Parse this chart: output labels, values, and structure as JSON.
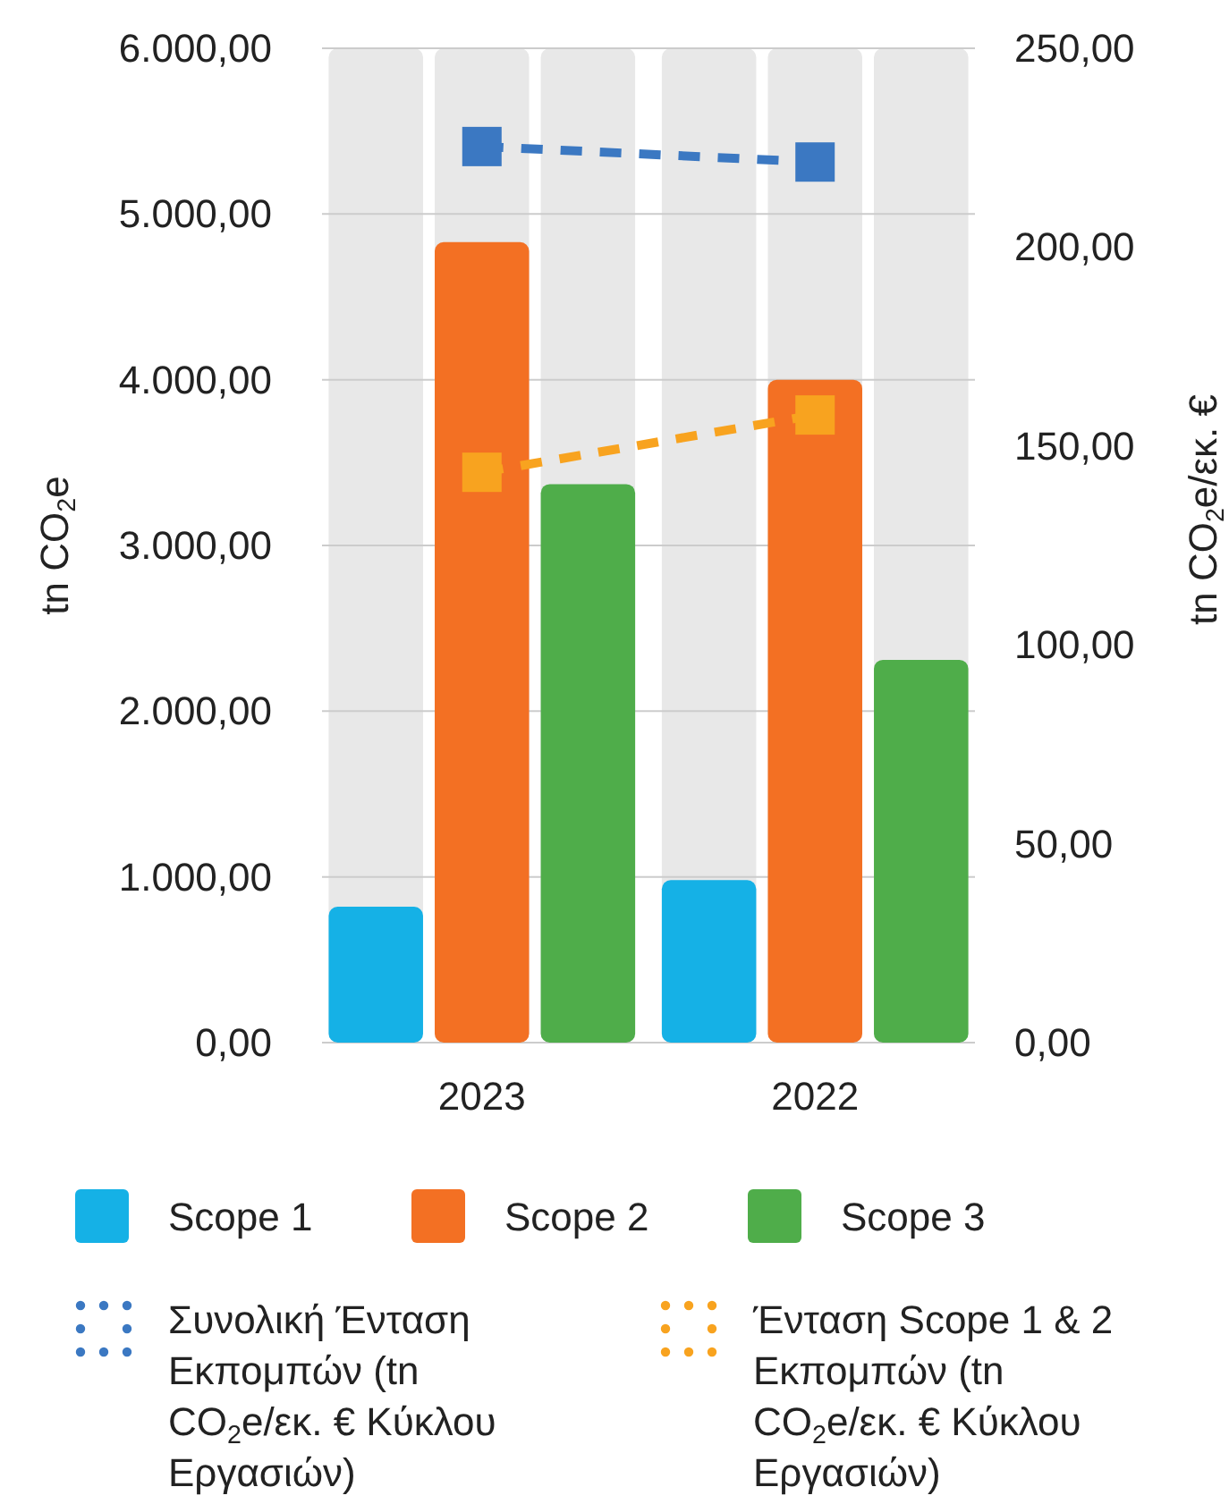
{
  "chart_data": {
    "type": "bar",
    "categories": [
      "2023",
      "2022"
    ],
    "ylabel": "tn CO$_{2}$e",
    "y2label": "tn CO$_{2}$e/εκ. €",
    "ylim": [
      0,
      6000
    ],
    "yticks": [
      {
        "value": 0,
        "label": "0,00"
      },
      {
        "value": 1000,
        "label": "1.000,00"
      },
      {
        "value": 2000,
        "label": "2.000,00"
      },
      {
        "value": 3000,
        "label": "3.000,00"
      },
      {
        "value": 4000,
        "label": "4.000,00"
      },
      {
        "value": 5000,
        "label": "5.000,00"
      },
      {
        "value": 6000,
        "label": "6.000,00"
      }
    ],
    "y2lim": [
      0,
      250
    ],
    "y2ticks": [
      {
        "value": 0,
        "label": "0,00"
      },
      {
        "value": 50,
        "label": "50,00"
      },
      {
        "value": 100,
        "label": "100,00"
      },
      {
        "value": 150,
        "label": "150,00"
      },
      {
        "value": 200,
        "label": "200,00"
      },
      {
        "value": 250,
        "label": "250,00"
      }
    ],
    "grid": "y",
    "legend": "bottom",
    "series": [
      {
        "name": "Scope 1",
        "color": "#15b1e6",
        "values": [
          820,
          980
        ]
      },
      {
        "name": "Scope 2",
        "color": "#f37023",
        "values": [
          4830,
          4000
        ]
      },
      {
        "name": "Scope 3",
        "color": "#4fad4a",
        "values": [
          3370,
          2310
        ]
      },
      {
        "name": "Συνολική Ένταση Εκπομπών (tn CO$_{2}$e/εκ. € Κύκλου Εργασιών)",
        "type": "line",
        "axis": "y2",
        "color": "#3b78c2",
        "values": [
          225.3,
          221.4
        ],
        "marker": "square",
        "line_style": "dashed"
      },
      {
        "name": "Ένταση Scope 1 & 2 Εκπομπών (tn CO$_{2}$e/εκ. € Κύκλου Εργασιών)",
        "type": "line",
        "axis": "y2",
        "color": "#f8a31f",
        "values": [
          143.4,
          157.8
        ],
        "marker": "square",
        "line_style": "dashed"
      }
    ]
  }
}
